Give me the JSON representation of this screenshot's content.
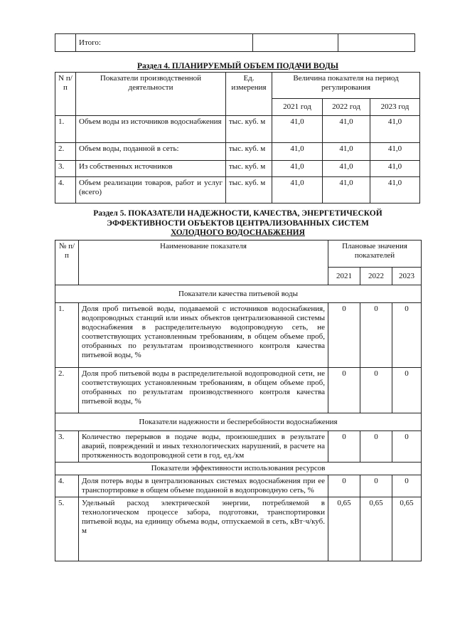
{
  "itogo_table": {
    "label": "Итого:"
  },
  "section4": {
    "title": "Раздел 4. ПЛАНИРУЕМЫЙ ОБЪЕМ ПОДАЧИ ВОДЫ",
    "headers": {
      "num": "N п/п",
      "indicator": "Показатели производственной деятельности",
      "unit": "Ед. измерения",
      "period": "Величина показателя на период регулирования",
      "years": [
        "2021 год",
        "2022 год",
        "2023 год"
      ]
    },
    "rows": [
      {
        "num": "1.",
        "name": "Объем воды из источников водоснабжения",
        "unit": "тыс. куб. м",
        "values": [
          "41,0",
          "41,0",
          "41,0"
        ]
      },
      {
        "num": "2.",
        "name": "Объем воды, поданной в сеть:",
        "unit": "тыс. куб. м",
        "values": [
          "41,0",
          "41,0",
          "41,0"
        ]
      },
      {
        "num": "3.",
        "name": "Из собственных источников",
        "unit": "тыс. куб. м",
        "values": [
          "41,0",
          "41,0",
          "41,0"
        ]
      },
      {
        "num": "4.",
        "name": "Объем реализации товаров, работ и услуг (всего)",
        "unit": "тыс. куб. м",
        "values": [
          "41,0",
          "41,0",
          "41,0"
        ]
      }
    ]
  },
  "section5": {
    "title_lines": [
      "Раздел 5. ПОКАЗАТЕЛИ НАДЕЖНОСТИ, КАЧЕСТВА, ЭНЕРГЕТИЧЕСКОЙ",
      "ЭФФЕКТИВНОСТИ ОБЪЕКТОВ ЦЕНТРАЛИЗОВАННЫХ СИСТЕМ",
      "ХОЛОДНОГО ВОДОСНАБЖЕНИЯ"
    ],
    "headers": {
      "num": "№ п/п",
      "name": "Наименование показателя",
      "planned": "Плановые значения показателей",
      "years": [
        "2021",
        "2022",
        "2023"
      ]
    },
    "groups": [
      {
        "title": "Показатели качества питьевой воды",
        "rows": [
          {
            "num": "1.",
            "name": "Доля проб питьевой воды, подаваемой с источников водоснабжения, водопроводных станций или иных объектов централизованной системы водоснабжения в распределительную водопроводную сеть, не соответствующих установленным требованиям, в общем объеме проб, отобранных по результатам производственного контроля качества питьевой воды, %",
            "values": [
              "0",
              "0",
              "0"
            ]
          },
          {
            "num": "2.",
            "name": "Доля проб питьевой воды в распределительной водопроводной сети, не соответствующих установленным требованиям, в общем объеме проб, отобранных по результатам производственного контроля качества питьевой воды, %",
            "values": [
              "0",
              "0",
              "0"
            ]
          }
        ]
      },
      {
        "title": "Показатели надежности и бесперебойности водоснабжения",
        "rows": [
          {
            "num": "3.",
            "name": "Количество перерывов в подаче воды, произошедших в результате аварий, повреждений и иных технологических нарушений, в расчете на протяженность водопроводной сети в год, ед./км",
            "values": [
              "0",
              "0",
              "0"
            ]
          }
        ]
      },
      {
        "title": "Показатели эффективности использования ресурсов",
        "rows": [
          {
            "num": "4.",
            "name": "Доля потерь воды в централизованных системах водоснабжения при ее транспортировке в общем объеме поданной в водопроводную сеть, %",
            "values": [
              "0",
              "0",
              "0"
            ]
          },
          {
            "num": "5.",
            "name": "Удельный расход электрической энергии, потребляемой в технологическом процессе забора, подготовки, транспортировки питьевой воды, на единицу объема воды, отпускаемой в сеть, кВт·ч/куб. м",
            "values": [
              "0,65",
              "0,65",
              "0,65"
            ]
          }
        ]
      }
    ]
  }
}
